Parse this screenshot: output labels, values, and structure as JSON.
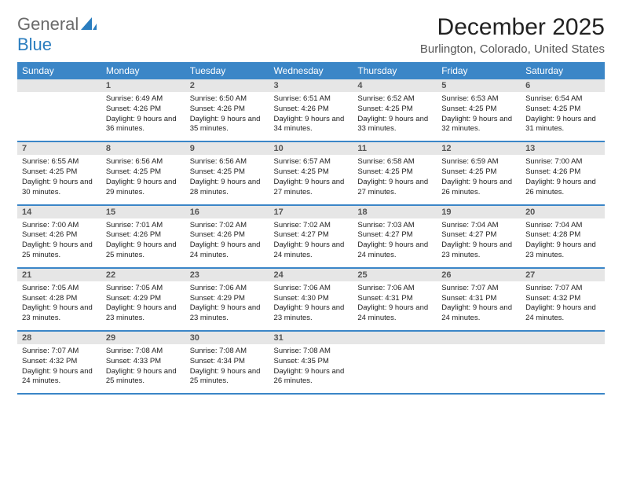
{
  "brand": {
    "word1": "General",
    "word2": "Blue"
  },
  "colors": {
    "header_bg": "#3b86c7",
    "header_text": "#ffffff",
    "daynum_bg": "#e6e6e6",
    "daynum_text": "#555555",
    "row_divider": "#3b86c7",
    "brand_gray": "#6a6a6a",
    "brand_blue": "#2a7dbf",
    "body_text": "#222222"
  },
  "fonts": {
    "title_size": 30,
    "location_size": 15,
    "header_size": 12,
    "cell_size": 9.5
  },
  "title": "December 2025",
  "location": "Burlington, Colorado, United States",
  "weekdays": [
    "Sunday",
    "Monday",
    "Tuesday",
    "Wednesday",
    "Thursday",
    "Friday",
    "Saturday"
  ],
  "first_weekday_index": 1,
  "days": [
    {
      "n": 1,
      "sunrise": "6:49 AM",
      "sunset": "4:26 PM",
      "daylight": "9 hours and 36 minutes."
    },
    {
      "n": 2,
      "sunrise": "6:50 AM",
      "sunset": "4:26 PM",
      "daylight": "9 hours and 35 minutes."
    },
    {
      "n": 3,
      "sunrise": "6:51 AM",
      "sunset": "4:26 PM",
      "daylight": "9 hours and 34 minutes."
    },
    {
      "n": 4,
      "sunrise": "6:52 AM",
      "sunset": "4:25 PM",
      "daylight": "9 hours and 33 minutes."
    },
    {
      "n": 5,
      "sunrise": "6:53 AM",
      "sunset": "4:25 PM",
      "daylight": "9 hours and 32 minutes."
    },
    {
      "n": 6,
      "sunrise": "6:54 AM",
      "sunset": "4:25 PM",
      "daylight": "9 hours and 31 minutes."
    },
    {
      "n": 7,
      "sunrise": "6:55 AM",
      "sunset": "4:25 PM",
      "daylight": "9 hours and 30 minutes."
    },
    {
      "n": 8,
      "sunrise": "6:56 AM",
      "sunset": "4:25 PM",
      "daylight": "9 hours and 29 minutes."
    },
    {
      "n": 9,
      "sunrise": "6:56 AM",
      "sunset": "4:25 PM",
      "daylight": "9 hours and 28 minutes."
    },
    {
      "n": 10,
      "sunrise": "6:57 AM",
      "sunset": "4:25 PM",
      "daylight": "9 hours and 27 minutes."
    },
    {
      "n": 11,
      "sunrise": "6:58 AM",
      "sunset": "4:25 PM",
      "daylight": "9 hours and 27 minutes."
    },
    {
      "n": 12,
      "sunrise": "6:59 AM",
      "sunset": "4:25 PM",
      "daylight": "9 hours and 26 minutes."
    },
    {
      "n": 13,
      "sunrise": "7:00 AM",
      "sunset": "4:26 PM",
      "daylight": "9 hours and 26 minutes."
    },
    {
      "n": 14,
      "sunrise": "7:00 AM",
      "sunset": "4:26 PM",
      "daylight": "9 hours and 25 minutes."
    },
    {
      "n": 15,
      "sunrise": "7:01 AM",
      "sunset": "4:26 PM",
      "daylight": "9 hours and 25 minutes."
    },
    {
      "n": 16,
      "sunrise": "7:02 AM",
      "sunset": "4:26 PM",
      "daylight": "9 hours and 24 minutes."
    },
    {
      "n": 17,
      "sunrise": "7:02 AM",
      "sunset": "4:27 PM",
      "daylight": "9 hours and 24 minutes."
    },
    {
      "n": 18,
      "sunrise": "7:03 AM",
      "sunset": "4:27 PM",
      "daylight": "9 hours and 24 minutes."
    },
    {
      "n": 19,
      "sunrise": "7:04 AM",
      "sunset": "4:27 PM",
      "daylight": "9 hours and 23 minutes."
    },
    {
      "n": 20,
      "sunrise": "7:04 AM",
      "sunset": "4:28 PM",
      "daylight": "9 hours and 23 minutes."
    },
    {
      "n": 21,
      "sunrise": "7:05 AM",
      "sunset": "4:28 PM",
      "daylight": "9 hours and 23 minutes."
    },
    {
      "n": 22,
      "sunrise": "7:05 AM",
      "sunset": "4:29 PM",
      "daylight": "9 hours and 23 minutes."
    },
    {
      "n": 23,
      "sunrise": "7:06 AM",
      "sunset": "4:29 PM",
      "daylight": "9 hours and 23 minutes."
    },
    {
      "n": 24,
      "sunrise": "7:06 AM",
      "sunset": "4:30 PM",
      "daylight": "9 hours and 23 minutes."
    },
    {
      "n": 25,
      "sunrise": "7:06 AM",
      "sunset": "4:31 PM",
      "daylight": "9 hours and 24 minutes."
    },
    {
      "n": 26,
      "sunrise": "7:07 AM",
      "sunset": "4:31 PM",
      "daylight": "9 hours and 24 minutes."
    },
    {
      "n": 27,
      "sunrise": "7:07 AM",
      "sunset": "4:32 PM",
      "daylight": "9 hours and 24 minutes."
    },
    {
      "n": 28,
      "sunrise": "7:07 AM",
      "sunset": "4:32 PM",
      "daylight": "9 hours and 24 minutes."
    },
    {
      "n": 29,
      "sunrise": "7:08 AM",
      "sunset": "4:33 PM",
      "daylight": "9 hours and 25 minutes."
    },
    {
      "n": 30,
      "sunrise": "7:08 AM",
      "sunset": "4:34 PM",
      "daylight": "9 hours and 25 minutes."
    },
    {
      "n": 31,
      "sunrise": "7:08 AM",
      "sunset": "4:35 PM",
      "daylight": "9 hours and 26 minutes."
    }
  ],
  "labels": {
    "sunrise": "Sunrise:",
    "sunset": "Sunset:",
    "daylight": "Daylight:"
  }
}
